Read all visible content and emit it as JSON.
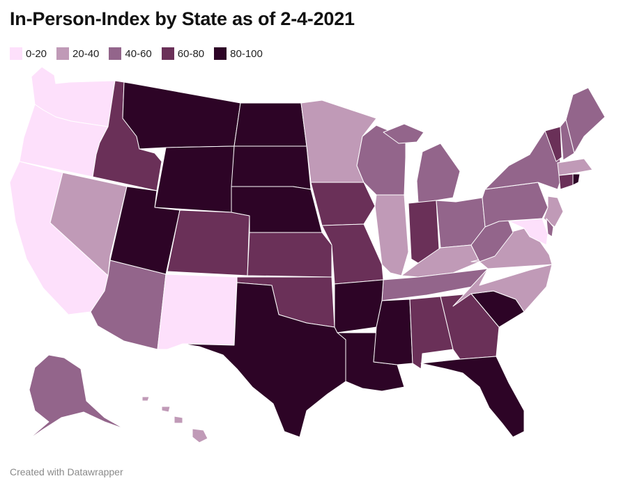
{
  "title": "In-Person-Index by State as of 2-4-2021",
  "credit": "Created with Datawrapper",
  "legend": [
    {
      "label": "0-20",
      "color": "#fde0fb"
    },
    {
      "label": "20-40",
      "color": "#c09ab7"
    },
    {
      "label": "40-60",
      "color": "#93658b"
    },
    {
      "label": "60-80",
      "color": "#6a3058"
    },
    {
      "label": "80-100",
      "color": "#2d0426"
    }
  ],
  "bin_colors": {
    "0-20": "#fde0fb",
    "20-40": "#c09ab7",
    "40-60": "#93658b",
    "60-80": "#6a3058",
    "80-100": "#2d0426"
  },
  "states": {
    "Washington": "0-20",
    "Oregon": "0-20",
    "California": "0-20",
    "New Mexico": "0-20",
    "Maryland": "0-20",
    "Nevada": "20-40",
    "Minnesota": "20-40",
    "Illinois": "20-40",
    "Kentucky": "20-40",
    "Virginia": "20-40",
    "North Carolina": "20-40",
    "New Jersey": "20-40",
    "Massachusetts": "20-40",
    "Hawaii": "20-40",
    "Arizona": "40-60",
    "Wisconsin": "40-60",
    "Michigan": "40-60",
    "Ohio": "40-60",
    "West Virginia": "40-60",
    "Pennsylvania": "40-60",
    "New York": "40-60",
    "Maine": "40-60",
    "New Hampshire": "40-60",
    "Tennessee": "40-60",
    "Alaska": "40-60",
    "Delaware": "40-60",
    "Idaho": "60-80",
    "Colorado": "60-80",
    "Kansas": "60-80",
    "Oklahoma": "60-80",
    "Iowa": "60-80",
    "Missouri": "60-80",
    "Indiana": "60-80",
    "Alabama": "60-80",
    "Georgia": "60-80",
    "Vermont": "60-80",
    "Connecticut": "60-80",
    "Montana": "80-100",
    "Wyoming": "80-100",
    "Utah": "80-100",
    "North Dakota": "80-100",
    "South Dakota": "80-100",
    "Nebraska": "80-100",
    "Texas": "80-100",
    "Arkansas": "80-100",
    "Louisiana": "80-100",
    "Mississippi": "80-100",
    "Florida": "80-100",
    "South Carolina": "80-100",
    "Rhode Island": "80-100"
  }
}
